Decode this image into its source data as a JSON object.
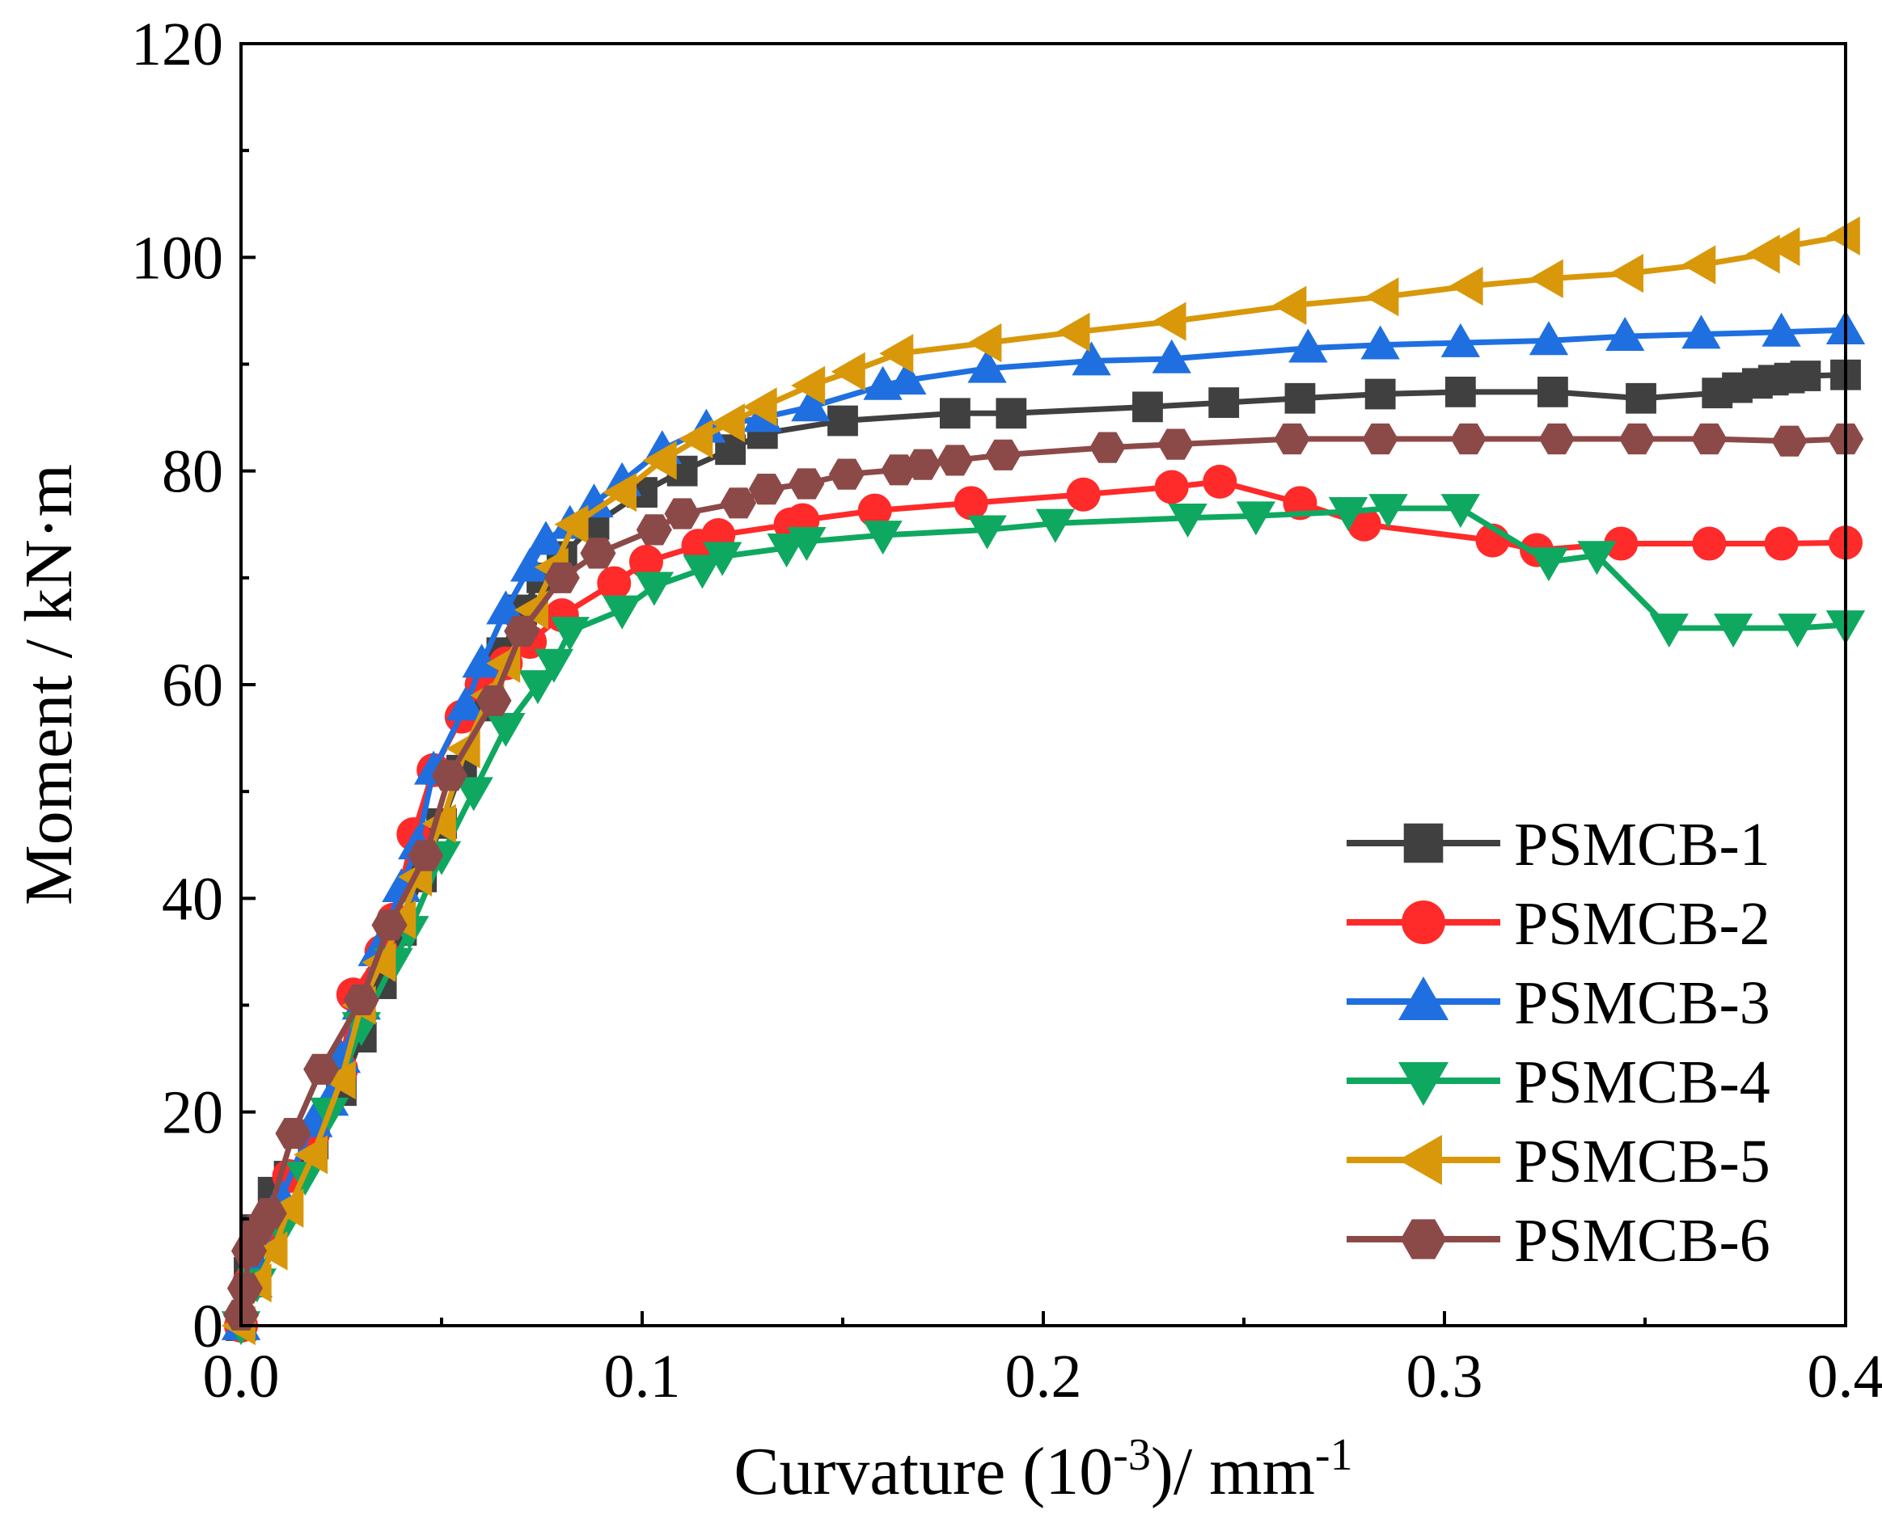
{
  "chart_data": {
    "type": "line",
    "title": "",
    "xlabel": {
      "prefix": "Curvature (10",
      "sup1": "-3",
      "middle": ")/  mm",
      "sup2": "-1"
    },
    "ylabel": "Moment / kN·m",
    "xlim": [
      0,
      0.4
    ],
    "ylim": [
      0,
      120
    ],
    "x_ticks": [
      0.0,
      0.1,
      0.2,
      0.3,
      0.4
    ],
    "x_tick_labels": [
      "0.0",
      "0.1",
      "0.2",
      "0.3",
      "0.4"
    ],
    "y_ticks": [
      0,
      20,
      40,
      60,
      80,
      100,
      120
    ],
    "y_tick_labels": [
      "0",
      "20",
      "40",
      "60",
      "80",
      "100",
      "120"
    ],
    "grid": false,
    "legend_position": "bottom-right",
    "series": [
      {
        "name": "PSMCB-1",
        "color": "#404040",
        "marker": "square",
        "points": [
          [
            0,
            0
          ],
          [
            0.002,
            5
          ],
          [
            0.004,
            9
          ],
          [
            0.008,
            12.5
          ],
          [
            0.012,
            14
          ],
          [
            0.018,
            17
          ],
          [
            0.025,
            22
          ],
          [
            0.03,
            27
          ],
          [
            0.035,
            32
          ],
          [
            0.04,
            37
          ],
          [
            0.045,
            42
          ],
          [
            0.05,
            47
          ],
          [
            0.055,
            52
          ],
          [
            0.06,
            58
          ],
          [
            0.065,
            63
          ],
          [
            0.07,
            67
          ],
          [
            0.075,
            70
          ],
          [
            0.08,
            72
          ],
          [
            0.088,
            75
          ],
          [
            0.1,
            78
          ],
          [
            0.11,
            80
          ],
          [
            0.122,
            82
          ],
          [
            0.13,
            83.5
          ],
          [
            0.15,
            84.7
          ],
          [
            0.178,
            85.4
          ],
          [
            0.192,
            85.4
          ],
          [
            0.226,
            86
          ],
          [
            0.245,
            86.4
          ],
          [
            0.264,
            86.8
          ],
          [
            0.284,
            87.2
          ],
          [
            0.304,
            87.4
          ],
          [
            0.327,
            87.4
          ],
          [
            0.349,
            86.8
          ],
          [
            0.368,
            87.3
          ],
          [
            0.373,
            87.8
          ],
          [
            0.378,
            88.2
          ],
          [
            0.382,
            88.5
          ],
          [
            0.386,
            88.7
          ],
          [
            0.39,
            88.9
          ],
          [
            0.4,
            89
          ]
        ]
      },
      {
        "name": "PSMCB-2",
        "color": "#ff2a2a",
        "marker": "circle",
        "points": [
          [
            0,
            0
          ],
          [
            0.002,
            4
          ],
          [
            0.006,
            8
          ],
          [
            0.012,
            14
          ],
          [
            0.018,
            18
          ],
          [
            0.025,
            24
          ],
          [
            0.028,
            31
          ],
          [
            0.035,
            35
          ],
          [
            0.038,
            38
          ],
          [
            0.043,
            46
          ],
          [
            0.048,
            52
          ],
          [
            0.055,
            57
          ],
          [
            0.06,
            60
          ],
          [
            0.066,
            62
          ],
          [
            0.072,
            64
          ],
          [
            0.08,
            66.5
          ],
          [
            0.093,
            69.5
          ],
          [
            0.101,
            71.5
          ],
          [
            0.114,
            73
          ],
          [
            0.119,
            74
          ],
          [
            0.137,
            75
          ],
          [
            0.14,
            75.4
          ],
          [
            0.158,
            76.3
          ],
          [
            0.182,
            77
          ],
          [
            0.21,
            77.8
          ],
          [
            0.232,
            78.5
          ],
          [
            0.244,
            79
          ],
          [
            0.264,
            77
          ],
          [
            0.28,
            75
          ],
          [
            0.312,
            73.5
          ],
          [
            0.323,
            72.6
          ],
          [
            0.344,
            73.2
          ],
          [
            0.366,
            73.2
          ],
          [
            0.384,
            73.2
          ],
          [
            0.4,
            73.3
          ]
        ]
      },
      {
        "name": "PSMCB-3",
        "color": "#1f6fe0",
        "marker": "triangle-up",
        "points": [
          [
            0,
            0
          ],
          [
            0.003,
            4
          ],
          [
            0.01,
            12
          ],
          [
            0.018,
            19
          ],
          [
            0.022,
            21
          ],
          [
            0.025,
            25
          ],
          [
            0.03,
            30
          ],
          [
            0.034,
            35
          ],
          [
            0.04,
            41
          ],
          [
            0.044,
            45
          ],
          [
            0.048,
            52
          ],
          [
            0.056,
            58
          ],
          [
            0.06,
            62
          ],
          [
            0.066,
            67
          ],
          [
            0.072,
            71
          ],
          [
            0.076,
            73.5
          ],
          [
            0.082,
            75
          ],
          [
            0.088,
            77
          ],
          [
            0.095,
            79
          ],
          [
            0.105,
            82
          ],
          [
            0.116,
            84
          ],
          [
            0.13,
            85
          ],
          [
            0.142,
            86
          ],
          [
            0.16,
            88
          ],
          [
            0.166,
            88.5
          ],
          [
            0.186,
            89.6
          ],
          [
            0.212,
            90.3
          ],
          [
            0.232,
            90.5
          ],
          [
            0.266,
            91.5
          ],
          [
            0.284,
            91.8
          ],
          [
            0.304,
            92
          ],
          [
            0.326,
            92.2
          ],
          [
            0.345,
            92.6
          ],
          [
            0.364,
            92.8
          ],
          [
            0.384,
            93
          ],
          [
            0.4,
            93.2
          ]
        ]
      },
      {
        "name": "PSMCB-4",
        "color": "#0fa860",
        "marker": "triangle-down",
        "points": [
          [
            0,
            0
          ],
          [
            0.004,
            4
          ],
          [
            0.01,
            9
          ],
          [
            0.016,
            14
          ],
          [
            0.022,
            20
          ],
          [
            0.03,
            28
          ],
          [
            0.038,
            34
          ],
          [
            0.042,
            37
          ],
          [
            0.05,
            44
          ],
          [
            0.058,
            50
          ],
          [
            0.066,
            56
          ],
          [
            0.074,
            60
          ],
          [
            0.078,
            62
          ],
          [
            0.082,
            65
          ],
          [
            0.095,
            67
          ],
          [
            0.103,
            69.2
          ],
          [
            0.115,
            70.8
          ],
          [
            0.12,
            72
          ],
          [
            0.136,
            72.8
          ],
          [
            0.141,
            73.4
          ],
          [
            0.16,
            74
          ],
          [
            0.186,
            74.5
          ],
          [
            0.203,
            75.1
          ],
          [
            0.236,
            75.6
          ],
          [
            0.253,
            75.8
          ],
          [
            0.276,
            76.2
          ],
          [
            0.286,
            76.5
          ],
          [
            0.304,
            76.5
          ],
          [
            0.326,
            71.5
          ],
          [
            0.338,
            72.1
          ],
          [
            0.356,
            65.3
          ],
          [
            0.372,
            65.3
          ],
          [
            0.388,
            65.3
          ],
          [
            0.4,
            65.6
          ]
        ]
      },
      {
        "name": "PSMCB-5",
        "color": "#d8980a",
        "marker": "triangle-left",
        "points": [
          [
            0,
            0
          ],
          [
            0.004,
            4
          ],
          [
            0.008,
            7
          ],
          [
            0.012,
            11
          ],
          [
            0.018,
            16
          ],
          [
            0.025,
            23
          ],
          [
            0.03,
            30
          ],
          [
            0.035,
            34
          ],
          [
            0.04,
            38
          ],
          [
            0.044,
            42
          ],
          [
            0.05,
            47
          ],
          [
            0.056,
            54
          ],
          [
            0.062,
            59
          ],
          [
            0.066,
            62
          ],
          [
            0.073,
            67
          ],
          [
            0.078,
            71
          ],
          [
            0.083,
            75
          ],
          [
            0.095,
            78
          ],
          [
            0.105,
            81
          ],
          [
            0.114,
            83
          ],
          [
            0.122,
            84.5
          ],
          [
            0.13,
            86
          ],
          [
            0.142,
            88
          ],
          [
            0.152,
            89.3
          ],
          [
            0.164,
            91
          ],
          [
            0.186,
            92
          ],
          [
            0.208,
            93
          ],
          [
            0.232,
            94
          ],
          [
            0.262,
            95.5
          ],
          [
            0.285,
            96.3
          ],
          [
            0.306,
            97.3
          ],
          [
            0.326,
            98
          ],
          [
            0.346,
            98.5
          ],
          [
            0.364,
            99.3
          ],
          [
            0.38,
            100.3
          ],
          [
            0.385,
            101
          ],
          [
            0.4,
            102
          ]
        ]
      },
      {
        "name": "PSMCB-6",
        "color": "#8b4a48",
        "marker": "hexagon",
        "points": [
          [
            0,
            1
          ],
          [
            0.001,
            3.5
          ],
          [
            0.002,
            7
          ],
          [
            0.004,
            9
          ],
          [
            0.007,
            10.5
          ],
          [
            0.013,
            18
          ],
          [
            0.02,
            24
          ],
          [
            0.03,
            30.5
          ],
          [
            0.037,
            37.5
          ],
          [
            0.046,
            44
          ],
          [
            0.052,
            51.5
          ],
          [
            0.063,
            58.5
          ],
          [
            0.07,
            65
          ],
          [
            0.08,
            70
          ],
          [
            0.089,
            72.3
          ],
          [
            0.103,
            74.5
          ],
          [
            0.11,
            76
          ],
          [
            0.124,
            77
          ],
          [
            0.131,
            78.3
          ],
          [
            0.141,
            78.8
          ],
          [
            0.151,
            79.7
          ],
          [
            0.164,
            80.1
          ],
          [
            0.17,
            80.6
          ],
          [
            0.178,
            81
          ],
          [
            0.19,
            81.5
          ],
          [
            0.216,
            82.2
          ],
          [
            0.233,
            82.5
          ],
          [
            0.262,
            83
          ],
          [
            0.284,
            83
          ],
          [
            0.306,
            83
          ],
          [
            0.328,
            83
          ],
          [
            0.348,
            83
          ],
          [
            0.366,
            83
          ],
          [
            0.386,
            82.8
          ],
          [
            0.4,
            83
          ]
        ]
      }
    ]
  }
}
